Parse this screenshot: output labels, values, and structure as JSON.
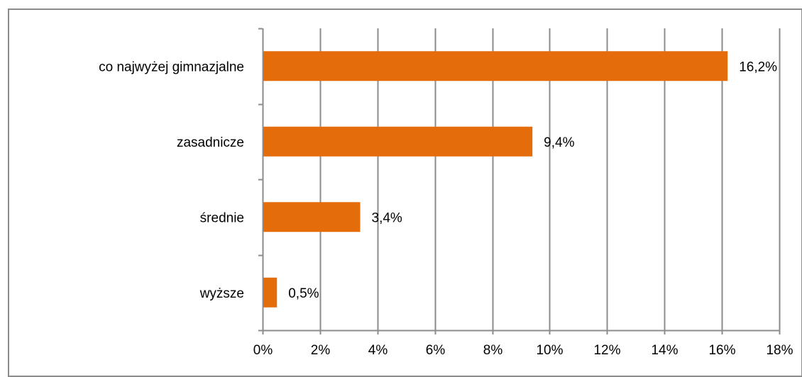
{
  "chart_data": {
    "type": "bar",
    "orientation": "horizontal",
    "categories": [
      "co najwyżej gimnazjalne",
      "zasadnicze",
      "średnie",
      "wyższe"
    ],
    "values": [
      16.2,
      9.4,
      3.4,
      0.5
    ],
    "value_labels": [
      "16,2%",
      "9,4%",
      "3,4%",
      "0,5%"
    ],
    "title": "",
    "xlabel": "",
    "ylabel": "",
    "xlim": [
      0,
      18
    ],
    "xticks": [
      0,
      2,
      4,
      6,
      8,
      10,
      12,
      14,
      16,
      18
    ],
    "xtick_labels": [
      "0%",
      "2%",
      "4%",
      "6%",
      "8%",
      "10%",
      "12%",
      "14%",
      "16%",
      "18%"
    ],
    "grid": "vertical major",
    "legend": "none",
    "colors": {
      "bar": "#E46C0A",
      "grid": "#8c8c8c",
      "axis": "#8c8c8c",
      "border": "#8c8c8c"
    }
  }
}
